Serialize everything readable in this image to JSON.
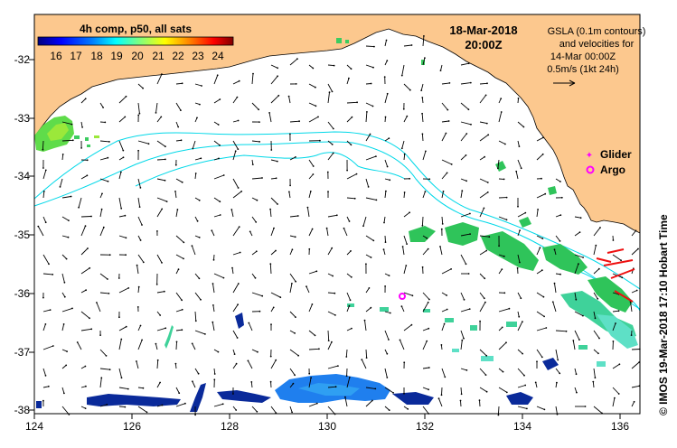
{
  "colorbar": {
    "title": "4h comp, p50, all sats",
    "ticks": [
      "16",
      "17",
      "18",
      "19",
      "20",
      "21",
      "22",
      "23",
      "24"
    ],
    "colors": [
      "#00007f",
      "#0000ff",
      "#007fff",
      "#00ffff",
      "#7fff7f",
      "#ffff00",
      "#ff7f00",
      "#ff0000",
      "#7f0000"
    ]
  },
  "header": {
    "date": "18-Mar-2018",
    "time": "20:00Z"
  },
  "gsla_info": {
    "line1": "GSLA (0.1m contours)",
    "line2": "and velocities for",
    "line3": "14-Mar 00:00Z",
    "line4": "0.5m/s (1kt 24h)"
  },
  "legend": {
    "glider": "Glider",
    "argo": "Argo",
    "glider_color": "#ff00ff",
    "argo_color": "#ff00ff"
  },
  "credit": "© IMOS 19-Mar-2018 17:10 Hobart Time",
  "axes": {
    "x_ticks": [
      "124",
      "126",
      "128",
      "130",
      "132",
      "134",
      "136"
    ],
    "y_ticks": [
      "-32",
      "-33",
      "-34",
      "-35",
      "-36",
      "-37",
      "-38"
    ]
  },
  "map_data": {
    "lon_range": [
      124,
      136.6
    ],
    "lat_range": [
      -38.1,
      -31.4
    ],
    "land_color": "#fcc88e",
    "ocean_color": "#ffffff",
    "contour_color": "#00d8e8",
    "argo_float": {
      "lon": 131.6,
      "lat": -36.05
    }
  }
}
